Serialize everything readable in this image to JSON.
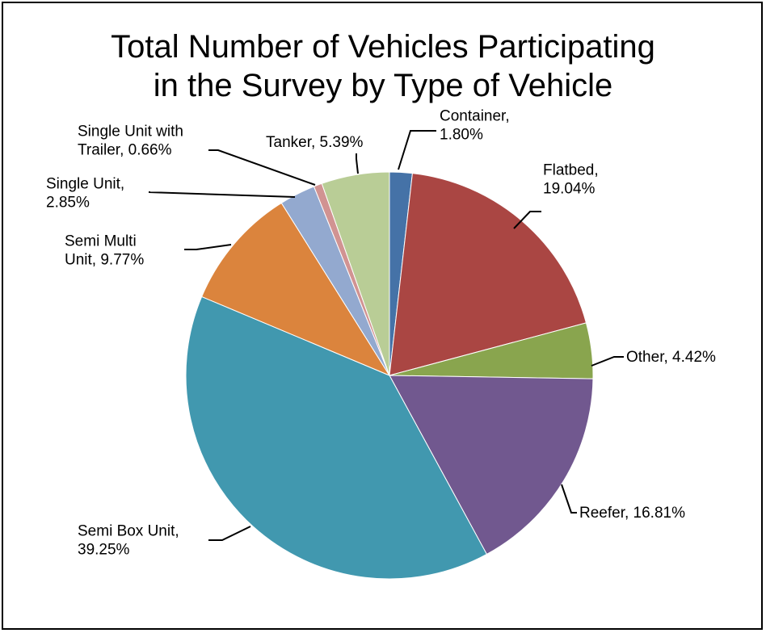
{
  "chart_data": {
    "type": "pie",
    "title": "Total Number of Vehicles Participating in the Survey by Type of Vehicle",
    "title_lines": [
      "Total Number of Vehicles Participating",
      "in the Survey by Type of Vehicle"
    ],
    "legend": "none",
    "slices": [
      {
        "name": "Container",
        "value": 1.8,
        "color": "#4572A7",
        "label_lines": [
          "Container,",
          "1.80%"
        ]
      },
      {
        "name": "Flatbed",
        "value": 19.04,
        "color": "#AA4643",
        "label_lines": [
          "Flatbed,",
          "19.04%"
        ]
      },
      {
        "name": "Other",
        "value": 4.42,
        "color": "#89A54E",
        "label_lines": [
          "Other, 4.42%"
        ]
      },
      {
        "name": "Reefer",
        "value": 16.81,
        "color": "#71588F",
        "label_lines": [
          "Reefer, 16.81%"
        ]
      },
      {
        "name": "Semi Box Unit",
        "value": 39.25,
        "color": "#4198AF",
        "label_lines": [
          "Semi Box Unit,",
          "39.25%"
        ]
      },
      {
        "name": "Semi Multi Unit",
        "value": 9.77,
        "color": "#DB843D",
        "label_lines": [
          "Semi Multi",
          "Unit, 9.77%"
        ]
      },
      {
        "name": "Single Unit",
        "value": 2.85,
        "color": "#93A9CF",
        "label_lines": [
          "Single Unit,",
          "2.85%"
        ]
      },
      {
        "name": "Single Unit with Trailer",
        "value": 0.66,
        "color": "#D19392",
        "label_lines": [
          "Single Unit with",
          "Trailer, 0.66%"
        ]
      },
      {
        "name": "Tanker",
        "value": 5.39,
        "color": "#B9CD96",
        "label_lines": [
          "Tanker, 5.39%"
        ]
      }
    ]
  }
}
